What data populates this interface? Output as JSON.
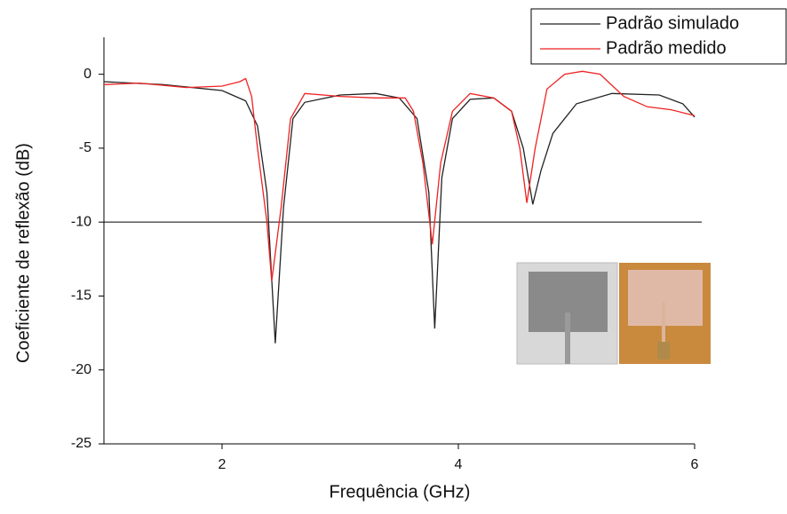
{
  "chart_data": {
    "type": "line",
    "xlabel": "Frequência (GHz)",
    "ylabel": "Coeficiente de reflexão (dB)",
    "xlim": [
      1,
      6
    ],
    "ylim": [
      -25,
      2.5
    ],
    "xticks": [
      2,
      4,
      6
    ],
    "yticks": [
      -25,
      -20,
      -15,
      -10,
      -5,
      0
    ],
    "reference_line": -10,
    "legend": "top-right",
    "series": [
      {
        "name": "Padrão simulado",
        "color": "#222222",
        "x": [
          1,
          1.5,
          2.0,
          2.2,
          2.3,
          2.38,
          2.45,
          2.52,
          2.6,
          2.7,
          3.0,
          3.3,
          3.5,
          3.65,
          3.75,
          3.8,
          3.86,
          3.95,
          4.1,
          4.3,
          4.45,
          4.55,
          4.63,
          4.7,
          4.8,
          5.0,
          5.3,
          5.7,
          5.9,
          6.0
        ],
        "values": [
          -0.5,
          -0.7,
          -1.1,
          -1.8,
          -3.5,
          -8,
          -18.2,
          -9,
          -3,
          -1.9,
          -1.4,
          -1.3,
          -1.6,
          -3,
          -8,
          -17.2,
          -7,
          -3,
          -1.7,
          -1.6,
          -2.5,
          -5,
          -8.8,
          -6.5,
          -4,
          -2,
          -1.3,
          -1.4,
          -2,
          -2.9
        ]
      },
      {
        "name": "Padrão medido",
        "color": "#ee2222",
        "x": [
          1,
          1.3,
          1.7,
          2.0,
          2.15,
          2.2,
          2.25,
          2.3,
          2.38,
          2.42,
          2.5,
          2.58,
          2.7,
          3.0,
          3.3,
          3.55,
          3.62,
          3.7,
          3.78,
          3.85,
          3.95,
          4.1,
          4.3,
          4.45,
          4.52,
          4.58,
          4.65,
          4.75,
          4.9,
          5.05,
          5.2,
          5.4,
          5.6,
          5.8,
          6.0
        ],
        "values": [
          -0.7,
          -0.6,
          -0.9,
          -0.8,
          -0.5,
          -0.3,
          -1.5,
          -5,
          -10,
          -14,
          -9,
          -3,
          -1.3,
          -1.5,
          -1.6,
          -1.6,
          -2.5,
          -6,
          -11.5,
          -6,
          -2.5,
          -1.3,
          -1.6,
          -2.5,
          -5,
          -8.7,
          -5,
          -1,
          0,
          0.2,
          0,
          -1.5,
          -2.2,
          -2.4,
          -2.8
        ]
      }
    ]
  }
}
